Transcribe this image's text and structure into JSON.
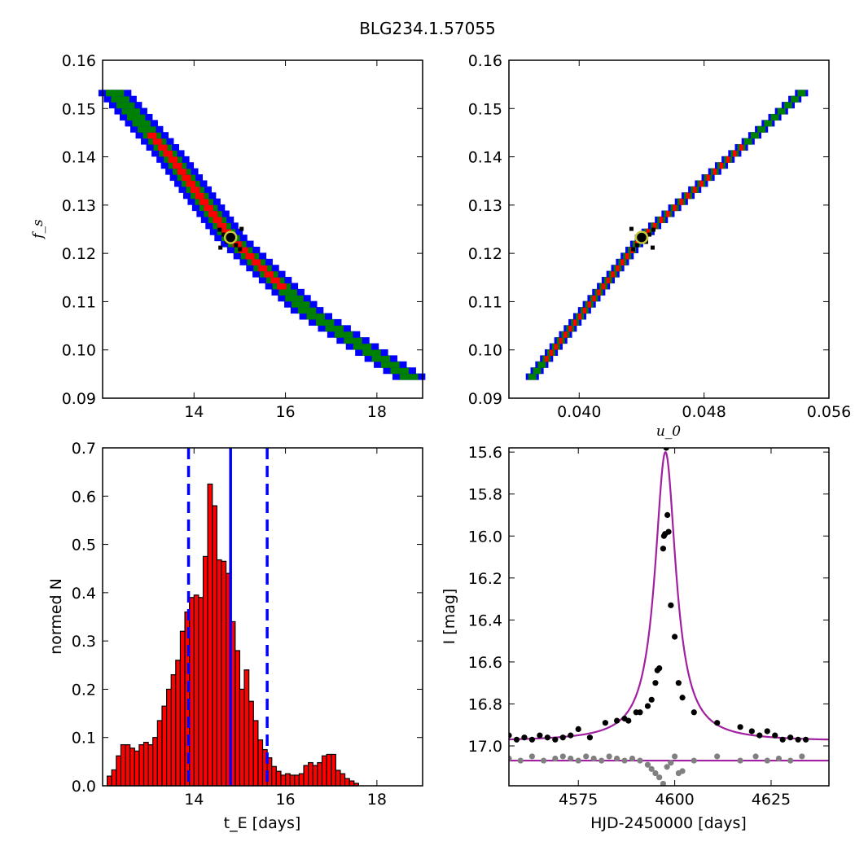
{
  "figure_title": "BLG234.1.57055",
  "colors": {
    "blue": "#0000ff",
    "green": "#008000",
    "red": "#ff0000",
    "model": "#a020a0",
    "gray": "#808080",
    "marker_fill": "#000000",
    "marker_ring": "#c8c83c"
  },
  "chart_data": [
    {
      "id": "fs_vs_tE",
      "type": "heatmap",
      "title": "",
      "xlabel": "",
      "ylabel": "f_s",
      "xlim": [
        12.0,
        19.0
      ],
      "ylim": [
        0.09,
        0.16
      ],
      "xticks": [
        14,
        16,
        18
      ],
      "yticks": [
        0.09,
        0.1,
        0.11,
        0.12,
        0.13,
        0.14,
        0.15,
        0.16
      ],
      "xtick_labels": [
        "14",
        "16",
        "18"
      ],
      "ytick_labels": [
        "0.09",
        "0.10",
        "0.11",
        "0.12",
        "0.13",
        "0.14",
        "0.15",
        "0.16"
      ],
      "band_center": [
        [
          12.2,
          0.154
        ],
        [
          13.5,
          0.14
        ],
        [
          14.8,
          0.1233
        ],
        [
          16.5,
          0.108
        ],
        [
          18.7,
          0.0945
        ]
      ],
      "band_halfwidth_x": {
        "blue": 0.36,
        "green": 0.2,
        "red": 0.1
      },
      "red_range_x": [
        13.0,
        16.0
      ],
      "best_fit": {
        "x": 14.8,
        "y": 0.1233
      }
    },
    {
      "id": "fs_vs_u0",
      "type": "heatmap",
      "title": "",
      "xlabel": "u_0",
      "ylabel": "",
      "xlim": [
        0.0355,
        0.056
      ],
      "ylim": [
        0.09,
        0.16
      ],
      "xticks": [
        0.04,
        0.048,
        0.056
      ],
      "yticks": [
        0.09,
        0.1,
        0.11,
        0.12,
        0.13,
        0.14,
        0.15,
        0.16
      ],
      "xtick_labels": [
        "0.040",
        "0.048",
        "0.056"
      ],
      "ytick_labels": [
        "0.09",
        "0.10",
        "0.11",
        "0.12",
        "0.13",
        "0.14",
        "0.15",
        "0.16"
      ],
      "band_center": [
        [
          0.037,
          0.0945
        ],
        [
          0.044,
          0.1233
        ],
        [
          0.0545,
          0.154
        ]
      ],
      "band_halfwidth_x": {
        "blue": 0.00042,
        "green": 0.00026,
        "red": 0.00012
      },
      "red_range_x": [
        0.0378,
        0.0505
      ],
      "best_fit": {
        "x": 0.044,
        "y": 0.1233
      }
    },
    {
      "id": "tE_histogram",
      "type": "bar",
      "title": "",
      "xlabel": "t_E [days]",
      "ylabel": "normed N",
      "xlim": [
        12.0,
        19.0
      ],
      "ylim": [
        0.0,
        0.7
      ],
      "xticks": [
        14,
        16,
        18
      ],
      "yticks": [
        0.0,
        0.1,
        0.2,
        0.3,
        0.4,
        0.5,
        0.6,
        0.7
      ],
      "xtick_labels": [
        "14",
        "16",
        "18"
      ],
      "ytick_labels": [
        "0.0",
        "0.1",
        "0.2",
        "0.3",
        "0.4",
        "0.5",
        "0.6",
        "0.7"
      ],
      "bin_start": 12.1,
      "bin_width": 0.1,
      "values": [
        0.02,
        0.033,
        0.062,
        0.085,
        0.085,
        0.078,
        0.072,
        0.085,
        0.09,
        0.085,
        0.1,
        0.135,
        0.165,
        0.2,
        0.23,
        0.26,
        0.32,
        0.36,
        0.39,
        0.395,
        0.39,
        0.475,
        0.625,
        0.58,
        0.468,
        0.465,
        0.44,
        0.34,
        0.28,
        0.2,
        0.24,
        0.175,
        0.135,
        0.095,
        0.075,
        0.058,
        0.04,
        0.03,
        0.022,
        0.025,
        0.022,
        0.022,
        0.025,
        0.042,
        0.048,
        0.042,
        0.048,
        0.062,
        0.065,
        0.065,
        0.032,
        0.025,
        0.015,
        0.01,
        0.005
      ],
      "vlines": [
        {
          "x": 14.8,
          "style": "solid"
        },
        {
          "x": 13.88,
          "style": "dashed"
        },
        {
          "x": 15.6,
          "style": "dashed"
        }
      ]
    },
    {
      "id": "light_curve",
      "type": "scatter",
      "title": "",
      "xlabel": "HJD-2450000 [days]",
      "ylabel": "I [mag]",
      "xlim": [
        4557,
        4640
      ],
      "ylim": [
        17.19,
        15.58
      ],
      "y_inverted": true,
      "xticks": [
        4575,
        4600,
        4625
      ],
      "yticks": [
        15.6,
        15.8,
        16.0,
        16.2,
        16.4,
        16.6,
        16.8,
        17.0
      ],
      "xtick_labels": [
        "4575",
        "4600",
        "4625"
      ],
      "ytick_labels": [
        "15.6",
        "15.8",
        "16.0",
        "16.2",
        "16.4",
        "16.6",
        "16.8",
        "17.0"
      ],
      "model": {
        "t0": 4597.6,
        "baseline": 16.978,
        "amplitude": 1.378,
        "width": 3.3
      },
      "baseline_line": 17.07,
      "series": [
        {
          "color": "black",
          "points": [
            [
              4557,
              16.95
            ],
            [
              4559,
              16.97
            ],
            [
              4561,
              16.96
            ],
            [
              4563,
              16.97
            ],
            [
              4565,
              16.95
            ],
            [
              4567,
              16.96
            ],
            [
              4569,
              16.97
            ],
            [
              4571,
              16.96
            ],
            [
              4573,
              16.95
            ],
            [
              4575,
              16.92
            ],
            [
              4578,
              16.96
            ],
            [
              4582,
              16.89
            ],
            [
              4585,
              16.88
            ],
            [
              4587,
              16.87
            ],
            [
              4588,
              16.88
            ],
            [
              4590,
              16.84
            ],
            [
              4591,
              16.84
            ],
            [
              4593,
              16.81
            ],
            [
              4594,
              16.78
            ],
            [
              4595,
              16.7
            ],
            [
              4595.5,
              16.64
            ],
            [
              4596,
              16.63
            ],
            [
              4597,
              16.06
            ],
            [
              4597.2,
              16.0
            ],
            [
              4597.5,
              15.99
            ],
            [
              4597.8,
              15.58
            ],
            [
              4598.1,
              15.9
            ],
            [
              4598.4,
              15.98
            ],
            [
              4599,
              16.33
            ],
            [
              4600,
              16.48
            ],
            [
              4601,
              16.7
            ],
            [
              4602,
              16.77
            ],
            [
              4605,
              16.84
            ],
            [
              4611,
              16.89
            ],
            [
              4617,
              16.91
            ],
            [
              4620,
              16.93
            ],
            [
              4622,
              16.95
            ],
            [
              4624,
              16.93
            ],
            [
              4626,
              16.95
            ],
            [
              4628,
              16.97
            ],
            [
              4630,
              16.96
            ],
            [
              4632,
              16.97
            ],
            [
              4634,
              16.97
            ]
          ]
        },
        {
          "color": "gray",
          "points": [
            [
              4557,
              17.06
            ],
            [
              4560,
              17.07
            ],
            [
              4563,
              17.05
            ],
            [
              4566,
              17.07
            ],
            [
              4569,
              17.06
            ],
            [
              4571,
              17.05
            ],
            [
              4573,
              17.06
            ],
            [
              4575,
              17.07
            ],
            [
              4577,
              17.05
            ],
            [
              4579,
              17.06
            ],
            [
              4581,
              17.07
            ],
            [
              4583,
              17.05
            ],
            [
              4585,
              17.06
            ],
            [
              4587,
              17.07
            ],
            [
              4589,
              17.06
            ],
            [
              4591,
              17.07
            ],
            [
              4593,
              17.09
            ],
            [
              4594,
              17.11
            ],
            [
              4595,
              17.13
            ],
            [
              4596,
              17.15
            ],
            [
              4597,
              17.18
            ],
            [
              4598,
              17.1
            ],
            [
              4599,
              17.08
            ],
            [
              4600,
              17.05
            ],
            [
              4601,
              17.13
            ],
            [
              4602,
              17.12
            ],
            [
              4605,
              17.07
            ],
            [
              4611,
              17.05
            ],
            [
              4617,
              17.07
            ],
            [
              4621,
              17.05
            ],
            [
              4624,
              17.07
            ],
            [
              4627,
              17.06
            ],
            [
              4630,
              17.07
            ],
            [
              4633,
              17.05
            ]
          ]
        }
      ]
    }
  ]
}
